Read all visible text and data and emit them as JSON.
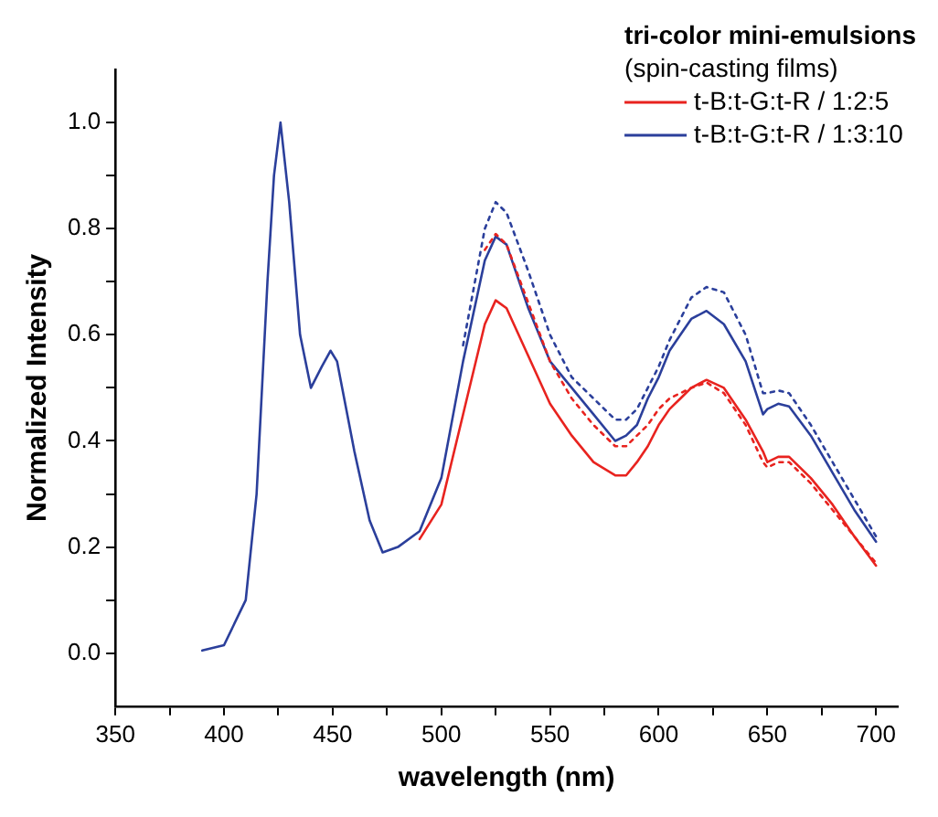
{
  "chart_data": {
    "type": "line",
    "xlabel": "wavelength (nm)",
    "ylabel": "Normalized Intensity",
    "legend_title": "tri-color mini-emulsions",
    "annotations": [
      "(spin-casting films)"
    ],
    "x": [
      390,
      400,
      410,
      415,
      420,
      423,
      426,
      430,
      435,
      440,
      445,
      449,
      452,
      460,
      467,
      473,
      480,
      490,
      500,
      510,
      520,
      525,
      530,
      540,
      550,
      560,
      570,
      580,
      585,
      590,
      595,
      600,
      605,
      610,
      615,
      622,
      630,
      640,
      648,
      650,
      655,
      660,
      670,
      680,
      690,
      700
    ],
    "series": [
      {
        "name": "t-B:t-G:t-R / 1:2:5",
        "color": "#e8231f",
        "line_style": "solid",
        "x": [
          490,
          500,
          510,
          520,
          525,
          530,
          540,
          550,
          560,
          570,
          580,
          585,
          590,
          595,
          600,
          605,
          610,
          615,
          622,
          630,
          640,
          648,
          650,
          655,
          660,
          670,
          680,
          690,
          700
        ],
        "values": [
          0.215,
          0.28,
          0.45,
          0.62,
          0.665,
          0.65,
          0.56,
          0.47,
          0.41,
          0.36,
          0.335,
          0.335,
          0.36,
          0.39,
          0.43,
          0.46,
          0.48,
          0.5,
          0.515,
          0.5,
          0.44,
          0.38,
          0.36,
          0.37,
          0.37,
          0.33,
          0.28,
          0.22,
          0.165
        ]
      },
      {
        "color": "#e8231f",
        "line_style": "dotted",
        "x": [
          520,
          525,
          530,
          540,
          550,
          560,
          570,
          580,
          585,
          590,
          595,
          600,
          605,
          610,
          615,
          622,
          630,
          640,
          648,
          650,
          655,
          660,
          670,
          680,
          690,
          700
        ],
        "values": [
          0.76,
          0.79,
          0.77,
          0.66,
          0.55,
          0.48,
          0.43,
          0.39,
          0.39,
          0.41,
          0.43,
          0.46,
          0.48,
          0.49,
          0.5,
          0.51,
          0.49,
          0.43,
          0.36,
          0.35,
          0.36,
          0.36,
          0.32,
          0.27,
          0.22,
          0.17
        ]
      },
      {
        "color": "#2b3f9b",
        "line_style": "dotted",
        "x": [
          510,
          520,
          525,
          530,
          540,
          550,
          560,
          570,
          580,
          585,
          590,
          595,
          600,
          605,
          610,
          615,
          622,
          630,
          640,
          648,
          650,
          655,
          660,
          670,
          680,
          690,
          700
        ],
        "values": [
          0.58,
          0.8,
          0.85,
          0.83,
          0.72,
          0.6,
          0.52,
          0.48,
          0.44,
          0.44,
          0.46,
          0.5,
          0.54,
          0.59,
          0.63,
          0.67,
          0.69,
          0.68,
          0.6,
          0.49,
          0.49,
          0.495,
          0.49,
          0.43,
          0.36,
          0.29,
          0.22
        ]
      },
      {
        "name": "t-B:t-G:t-R / 1:3:10",
        "color": "#2b3f9b",
        "line_style": "solid",
        "values": [
          0.005,
          0.015,
          0.1,
          0.3,
          0.7,
          0.9,
          1.0,
          0.85,
          0.6,
          0.5,
          0.54,
          0.57,
          0.55,
          0.38,
          0.25,
          0.19,
          0.2,
          0.23,
          0.33,
          0.55,
          0.74,
          0.785,
          0.77,
          0.65,
          0.55,
          0.5,
          0.45,
          0.4,
          0.41,
          0.43,
          0.48,
          0.52,
          0.57,
          0.6,
          0.63,
          0.645,
          0.62,
          0.55,
          0.45,
          0.46,
          0.47,
          0.465,
          0.41,
          0.34,
          0.27,
          0.21
        ]
      }
    ],
    "xlim": [
      350,
      710
    ],
    "xticks": [
      350,
      {
        "value": 375,
        "label": null
      },
      400,
      {
        "value": 425,
        "label": null
      },
      450,
      {
        "value": 475,
        "label": null
      },
      500,
      {
        "value": 525,
        "label": null
      },
      550,
      {
        "value": 575,
        "label": null
      },
      600,
      {
        "value": 625,
        "label": null
      },
      650,
      {
        "value": 675,
        "label": null
      },
      700
    ],
    "ylim": [
      -0.1,
      1.1
    ],
    "yticks": [
      {
        "value": 0,
        "label": "0.0"
      },
      {
        "value": 0.1,
        "label": null
      },
      {
        "value": 0.2,
        "label": "0.2"
      },
      {
        "value": 0.3,
        "label": null
      },
      {
        "value": 0.4,
        "label": "0.4"
      },
      {
        "value": 0.5,
        "label": null
      },
      {
        "value": 0.6,
        "label": "0.6"
      },
      {
        "value": 0.7,
        "label": null
      },
      {
        "value": 0.8,
        "label": "0.8"
      },
      {
        "value": 0.9,
        "label": null
      },
      {
        "value": 1.0,
        "label": "1.0"
      }
    ],
    "grid": false,
    "legend": "top right",
    "marker": "none"
  }
}
